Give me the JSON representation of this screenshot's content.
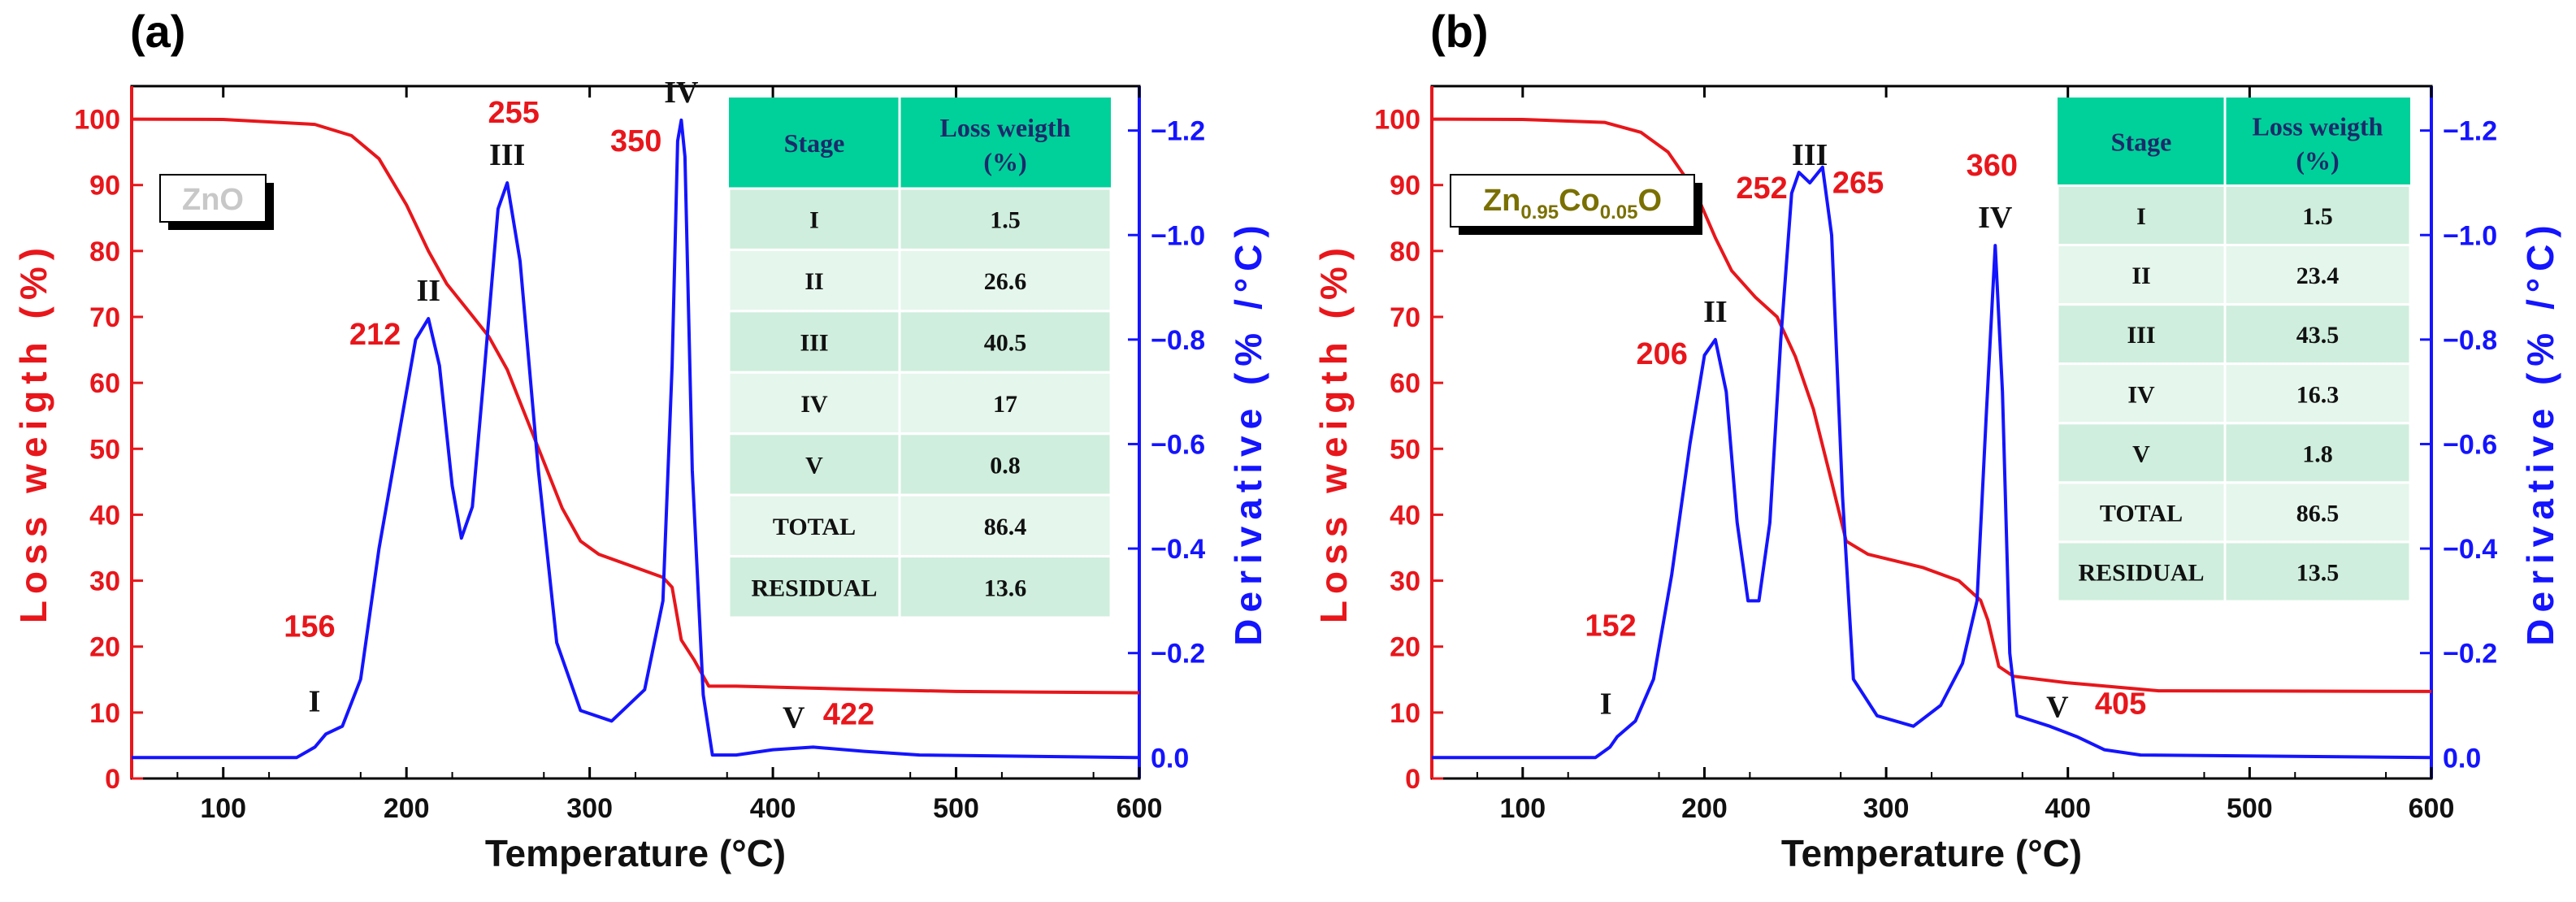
{
  "colors": {
    "red": "#e8161b",
    "blue": "#1414ff",
    "table_header": "#00d09a",
    "table_row_dark": "#cfeedd",
    "table_row_light": "#e5f6ec",
    "table_header_text": "#1c2a6a",
    "zno_label": "#c8c8c8",
    "znco_label": "#7a7000"
  },
  "chart_data": [
    {
      "panel": "(a)",
      "type": "line",
      "sample_label": "ZnO",
      "xlabel": "Temperature (°C)",
      "ylabel_left": "Loss weigth (%)",
      "ylabel_right": "Derivative (% /°C)",
      "xlim": [
        50,
        600
      ],
      "ylim_left": [
        0,
        105
      ],
      "ylim_right": [
        0.04,
        -1.285
      ],
      "x_ticks": [
        "100",
        "200",
        "300",
        "400",
        "500",
        "600"
      ],
      "y_left_ticks": [
        "0",
        "10",
        "20",
        "30",
        "40",
        "50",
        "60",
        "70",
        "80",
        "90",
        "100"
      ],
      "y_right_ticks": [
        "0.0",
        "−0.2",
        "−0.4",
        "−0.6",
        "−0.8",
        "−1.0",
        "−1.2"
      ],
      "series": [
        {
          "name": "Loss weight",
          "axis": "left",
          "points": [
            [
              50,
              100
            ],
            [
              100,
              99.95
            ],
            [
              150,
              99.2
            ],
            [
              170,
              97.5
            ],
            [
              185,
              94
            ],
            [
              200,
              87
            ],
            [
              212,
              80
            ],
            [
              222,
              75
            ],
            [
              235,
              70.5
            ],
            [
              245,
              67
            ],
            [
              255,
              62
            ],
            [
              265,
              55
            ],
            [
              275,
              48
            ],
            [
              285,
              41
            ],
            [
              295,
              36
            ],
            [
              305,
              34
            ],
            [
              320,
              32.5
            ],
            [
              340,
              30.5
            ],
            [
              345,
              29
            ],
            [
              350,
              21
            ],
            [
              357,
              18
            ],
            [
              365,
              14
            ],
            [
              380,
              14
            ],
            [
              450,
              13.5
            ],
            [
              500,
              13.2
            ],
            [
              600,
              13
            ]
          ]
        },
        {
          "name": "Derivative",
          "axis": "right",
          "points": [
            [
              50,
              0
            ],
            [
              140,
              0
            ],
            [
              150,
              -0.02
            ],
            [
              156,
              -0.045
            ],
            [
              165,
              -0.06
            ],
            [
              175,
              -0.15
            ],
            [
              185,
              -0.4
            ],
            [
              195,
              -0.6
            ],
            [
              205,
              -0.8
            ],
            [
              212,
              -0.84
            ],
            [
              218,
              -0.75
            ],
            [
              225,
              -0.52
            ],
            [
              230,
              -0.42
            ],
            [
              236,
              -0.48
            ],
            [
              242,
              -0.72
            ],
            [
              250,
              -1.05
            ],
            [
              255,
              -1.1
            ],
            [
              262,
              -0.95
            ],
            [
              272,
              -0.55
            ],
            [
              282,
              -0.22
            ],
            [
              295,
              -0.09
            ],
            [
              312,
              -0.07
            ],
            [
              330,
              -0.13
            ],
            [
              340,
              -0.3
            ],
            [
              345,
              -0.75
            ],
            [
              348,
              -1.18
            ],
            [
              350,
              -1.22
            ],
            [
              352,
              -1.15
            ],
            [
              356,
              -0.55
            ],
            [
              362,
              -0.12
            ],
            [
              367,
              -0.005
            ],
            [
              380,
              -0.005
            ],
            [
              400,
              -0.015
            ],
            [
              422,
              -0.02
            ],
            [
              450,
              -0.012
            ],
            [
              480,
              -0.005
            ],
            [
              600,
              0
            ]
          ]
        }
      ],
      "peak_labels": [
        {
          "text": "156",
          "x": 156
        },
        {
          "text": "212",
          "x": 212
        },
        {
          "text": "255",
          "x": 255
        },
        {
          "text": "350",
          "x": 350
        },
        {
          "text": "422",
          "x": 422
        }
      ],
      "stage_labels": [
        {
          "text": "I",
          "x": 156
        },
        {
          "text": "II",
          "x": 212
        },
        {
          "text": "III",
          "x": 255
        },
        {
          "text": "IV",
          "x": 350
        },
        {
          "text": "V",
          "x": 422
        }
      ],
      "table": {
        "headers": [
          "Stage",
          "Loss weigth\n(%)"
        ],
        "rows": [
          [
            "I",
            "1.5"
          ],
          [
            "II",
            "26.6"
          ],
          [
            "III",
            "40.5"
          ],
          [
            "IV",
            "17"
          ],
          [
            "V",
            "0.8"
          ],
          [
            "TOTAL",
            "86.4"
          ],
          [
            "RESIDUAL",
            "13.6"
          ]
        ]
      }
    },
    {
      "panel": "(b)",
      "type": "line",
      "sample_label": "Zn0.95Co0.05O",
      "sample_label_parts": {
        "a": "Zn",
        "b": "0.95",
        "c": "Co",
        "d": "0.05",
        "e": "O"
      },
      "xlabel": "Temperature (°C)",
      "ylabel_left": "Loss weigth (%)",
      "ylabel_right": "Derivative (% /°C)",
      "xlim": [
        50,
        600
      ],
      "ylim_left": [
        0,
        105
      ],
      "ylim_right": [
        0.04,
        -1.285
      ],
      "x_ticks": [
        "100",
        "200",
        "300",
        "400",
        "500",
        "600"
      ],
      "y_left_ticks": [
        "0",
        "10",
        "20",
        "30",
        "40",
        "50",
        "60",
        "70",
        "80",
        "90",
        "100"
      ],
      "y_right_ticks": [
        "0.0",
        "−0.2",
        "−0.4",
        "−0.6",
        "−0.8",
        "−1.0",
        "−1.2"
      ],
      "series": [
        {
          "name": "Loss weight",
          "axis": "left",
          "points": [
            [
              50,
              100
            ],
            [
              100,
              99.95
            ],
            [
              145,
              99.5
            ],
            [
              165,
              98
            ],
            [
              180,
              95
            ],
            [
              195,
              89
            ],
            [
              206,
              82
            ],
            [
              215,
              77
            ],
            [
              228,
              73
            ],
            [
              240,
              70
            ],
            [
              250,
              64
            ],
            [
              260,
              56
            ],
            [
              270,
              45
            ],
            [
              278,
              36
            ],
            [
              290,
              34
            ],
            [
              320,
              32
            ],
            [
              340,
              30
            ],
            [
              352,
              27
            ],
            [
              356,
              24
            ],
            [
              362,
              17
            ],
            [
              370,
              15.5
            ],
            [
              400,
              14.5
            ],
            [
              450,
              13.3
            ],
            [
              600,
              13.2
            ]
          ]
        },
        {
          "name": "Derivative",
          "axis": "right",
          "points": [
            [
              50,
              0
            ],
            [
              140,
              0
            ],
            [
              148,
              -0.02
            ],
            [
              152,
              -0.04
            ],
            [
              162,
              -0.07
            ],
            [
              172,
              -0.15
            ],
            [
              182,
              -0.35
            ],
            [
              192,
              -0.6
            ],
            [
              200,
              -0.77
            ],
            [
              206,
              -0.8
            ],
            [
              212,
              -0.7
            ],
            [
              218,
              -0.45
            ],
            [
              224,
              -0.3
            ],
            [
              230,
              -0.3
            ],
            [
              236,
              -0.45
            ],
            [
              242,
              -0.8
            ],
            [
              248,
              -1.08
            ],
            [
              252,
              -1.12
            ],
            [
              258,
              -1.1
            ],
            [
              265,
              -1.13
            ],
            [
              270,
              -1.0
            ],
            [
              276,
              -0.5
            ],
            [
              282,
              -0.15
            ],
            [
              295,
              -0.08
            ],
            [
              315,
              -0.06
            ],
            [
              330,
              -0.1
            ],
            [
              342,
              -0.18
            ],
            [
              350,
              -0.3
            ],
            [
              355,
              -0.65
            ],
            [
              360,
              -0.98
            ],
            [
              364,
              -0.7
            ],
            [
              368,
              -0.2
            ],
            [
              372,
              -0.08
            ],
            [
              390,
              -0.06
            ],
            [
              405,
              -0.04
            ],
            [
              420,
              -0.015
            ],
            [
              440,
              -0.005
            ],
            [
              600,
              0
            ]
          ]
        }
      ],
      "peak_labels": [
        {
          "text": "152",
          "x": 152
        },
        {
          "text": "206",
          "x": 206
        },
        {
          "text": "252",
          "x": 252
        },
        {
          "text": "265",
          "x": 265
        },
        {
          "text": "360",
          "x": 360
        },
        {
          "text": "405",
          "x": 405
        }
      ],
      "stage_labels": [
        {
          "text": "I",
          "x": 152
        },
        {
          "text": "II",
          "x": 206
        },
        {
          "text": "III",
          "x": 258
        },
        {
          "text": "IV",
          "x": 360
        },
        {
          "text": "V",
          "x": 405
        }
      ],
      "table": {
        "headers": [
          "Stage",
          "Loss weigth\n(%)"
        ],
        "rows": [
          [
            "I",
            "1.5"
          ],
          [
            "II",
            "23.4"
          ],
          [
            "III",
            "43.5"
          ],
          [
            "IV",
            "16.3"
          ],
          [
            "V",
            "1.8"
          ],
          [
            "TOTAL",
            "86.5"
          ],
          [
            "RESIDUAL",
            "13.5"
          ]
        ]
      }
    }
  ]
}
